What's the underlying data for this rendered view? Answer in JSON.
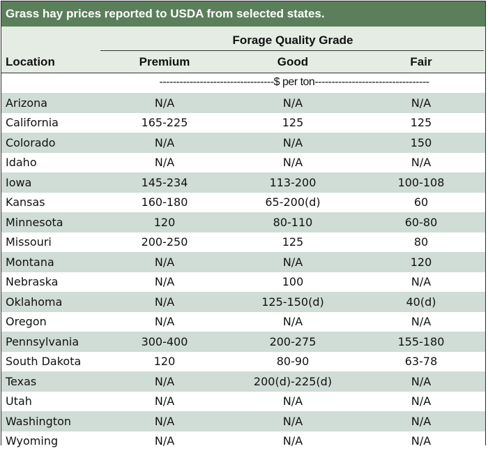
{
  "title": "Grass hay prices reported to USDA from selected states.",
  "header": {
    "group": "Forage Quality Grade",
    "location": "Location",
    "columns": [
      "Premium",
      "Good",
      "Fair"
    ]
  },
  "units": "----------------------------------$ per ton----------------------------------",
  "colors": {
    "title_bg": "#5b7f5b",
    "band": "#d0dcd6",
    "header_bg": "#e4ece4"
  },
  "rows": [
    {
      "location": "Arizona",
      "premium": "N/A",
      "good": "N/A",
      "fair": "N/A"
    },
    {
      "location": "California",
      "premium": "165-225",
      "good": "125",
      "fair": "125"
    },
    {
      "location": "Colorado",
      "premium": "N/A",
      "good": "N/A",
      "fair": "150"
    },
    {
      "location": "Idaho",
      "premium": "N/A",
      "good": "N/A",
      "fair": "N/A"
    },
    {
      "location": "Iowa",
      "premium": "145-234",
      "good": "113-200",
      "fair": "100-108"
    },
    {
      "location": "Kansas",
      "premium": "160-180",
      "good": "65-200(d)",
      "fair": "60"
    },
    {
      "location": "Minnesota",
      "premium": "120",
      "good": "80-110",
      "fair": "60-80"
    },
    {
      "location": "Missouri",
      "premium": "200-250",
      "good": "125",
      "fair": "80"
    },
    {
      "location": "Montana",
      "premium": "N/A",
      "good": "N/A",
      "fair": "120"
    },
    {
      "location": "Nebraska",
      "premium": "N/A",
      "good": "100",
      "fair": "N/A"
    },
    {
      "location": "Oklahoma",
      "premium": "N/A",
      "good": "125-150(d)",
      "fair": "40(d)"
    },
    {
      "location": "Oregon",
      "premium": "N/A",
      "good": "N/A",
      "fair": "N/A"
    },
    {
      "location": "Pennsylvania",
      "premium": "300-400",
      "good": "200-275",
      "fair": "155-180"
    },
    {
      "location": "South Dakota",
      "premium": "120",
      "good": "80-90",
      "fair": "63-78"
    },
    {
      "location": "Texas",
      "premium": "N/A",
      "good": "200(d)-225(d)",
      "fair": "N/A"
    },
    {
      "location": "Utah",
      "premium": "N/A",
      "good": "N/A",
      "fair": "N/A"
    },
    {
      "location": "Washington",
      "premium": "N/A",
      "good": "N/A",
      "fair": "N/A"
    },
    {
      "location": "Wyoming",
      "premium": "N/A",
      "good": "N/A",
      "fair": "N/A"
    }
  ]
}
